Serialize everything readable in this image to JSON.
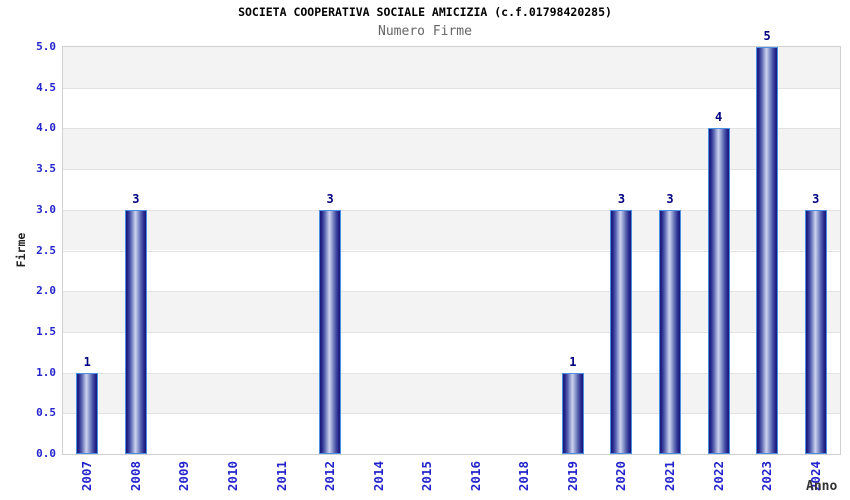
{
  "header": {
    "title": "SOCIETA COOPERATIVA SOCIALE AMICIZIA (c.f.01798420285)",
    "subtitle": "Numero Firme"
  },
  "chart_data": {
    "type": "bar",
    "title": "SOCIETA COOPERATIVA SOCIALE AMICIZIA (c.f.01798420285)",
    "subtitle": "Numero Firme",
    "xlabel": "Anno",
    "ylabel": "Firme",
    "categories": [
      "2007",
      "2008",
      "2009",
      "2010",
      "2011",
      "2012",
      "2014",
      "2015",
      "2016",
      "2018",
      "2019",
      "2020",
      "2021",
      "2022",
      "2023",
      "2024"
    ],
    "values": [
      1,
      3,
      0,
      0,
      0,
      3,
      0,
      0,
      0,
      0,
      1,
      3,
      3,
      4,
      5,
      3
    ],
    "ylim": [
      0,
      5
    ],
    "ytick_step": 0.5,
    "yticks": [
      "0.0",
      "0.5",
      "1.0",
      "1.5",
      "2.0",
      "2.5",
      "3.0",
      "3.5",
      "4.0",
      "4.5",
      "5.0"
    ],
    "grid": true,
    "legend": "none",
    "show_value_labels": true,
    "colors": {
      "band_white": "#ffffff",
      "band_gray": "#f3f3f3",
      "grid_line": "#e2e2e2",
      "plot_border": "#d0d0d0",
      "bar_border": "#4a90e2",
      "bar_dark": "#181878",
      "bar_light": "#cdd3ee",
      "tick_label": "#2424cc",
      "value_label": "#000080",
      "title": "#000000",
      "subtitle": "#666666",
      "axis_title": "#333333"
    }
  }
}
